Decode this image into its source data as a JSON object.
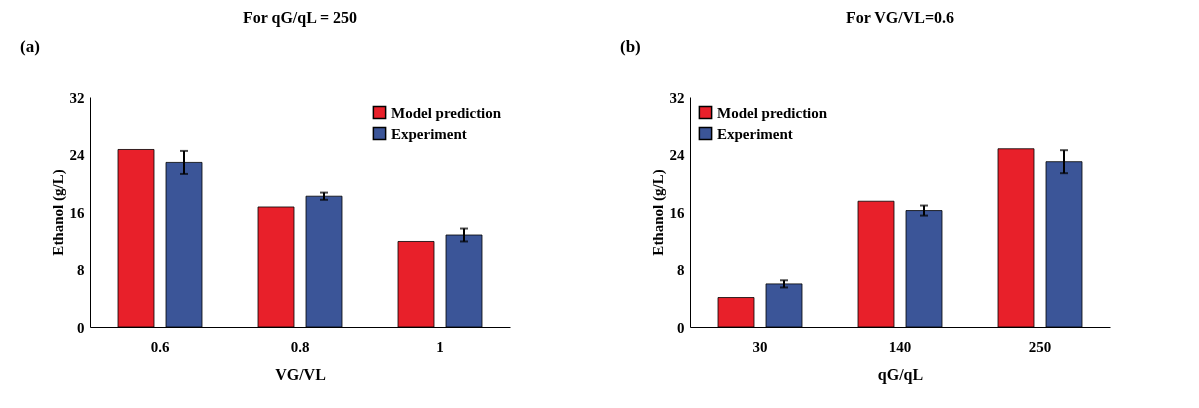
{
  "chart_data": [
    {
      "type": "bar",
      "title": "For qG/qL = 250",
      "annotations": [
        "(a)"
      ],
      "xlabel": "VG/VL",
      "ylabel": "Ethanol  (g/L)",
      "categories": [
        "0.6",
        "0.8",
        "1"
      ],
      "series": [
        {
          "name": "Model prediction",
          "color": "#e8202a",
          "values": [
            24.7,
            16.7,
            11.9
          ]
        },
        {
          "name": "Experiment",
          "color": "#3b5598",
          "values": [
            22.9,
            18.2,
            12.8
          ],
          "errors": [
            1.6,
            0.5,
            0.9
          ]
        }
      ],
      "ylim": [
        0,
        32
      ],
      "yticks": [
        0,
        8,
        16,
        24,
        32
      ],
      "grid": false,
      "legend": "top right"
    },
    {
      "type": "bar",
      "title": "For VG/VL=0.6",
      "annotations": [
        "(b)"
      ],
      "xlabel": "qG/qL",
      "ylabel": "Ethanol  (g/L)",
      "categories": [
        "30",
        "140",
        "250"
      ],
      "series": [
        {
          "name": "Model prediction",
          "color": "#e8202a",
          "values": [
            4.1,
            17.5,
            24.8
          ]
        },
        {
          "name": "Experiment",
          "color": "#3b5598",
          "values": [
            6.0,
            16.2,
            23.0
          ],
          "errors": [
            0.5,
            0.7,
            1.6
          ]
        }
      ],
      "ylim": [
        0,
        32
      ],
      "yticks": [
        0,
        8,
        16,
        24,
        32
      ],
      "grid": false,
      "legend": "top left"
    }
  ]
}
